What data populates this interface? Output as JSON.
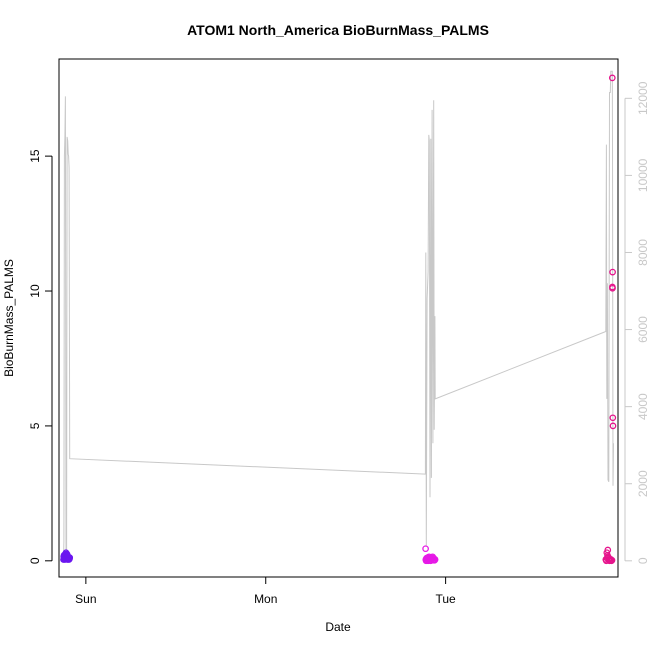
{
  "chart_data": {
    "type": "scatter",
    "title": "ATOM1 North_America BioBurnMass_PALMS",
    "xlabel": "Date",
    "ylabel": "BioBurnMass_PALMS",
    "x_axis": {
      "type": "date",
      "ticks": [
        {
          "label": "Sun",
          "value": "2016-08-07T00:00"
        },
        {
          "label": "Mon",
          "value": "2016-08-08T00:00"
        },
        {
          "label": "Tue",
          "value": "2016-08-09T00:00"
        }
      ],
      "range": [
        "2016-08-06T20:25",
        "2016-08-09T23:00"
      ]
    },
    "y_axis_left": {
      "ticks": [
        0,
        5,
        10,
        15
      ],
      "range": [
        -0.6,
        18.6
      ]
    },
    "y_axis_right": {
      "ticks": [
        0,
        2000,
        4000,
        6000,
        8000,
        10000,
        12000
      ],
      "range": [
        -420,
        13020
      ],
      "color": "#c8c8c8"
    },
    "line_series": {
      "color": "#c8c8c8",
      "axis": "right",
      "points": [
        [
          "2016-08-06T21:01",
          0
        ],
        [
          "2016-08-06T21:04",
          510
        ],
        [
          "2016-08-06T21:08",
          10500
        ],
        [
          "2016-08-06T21:12",
          11000
        ],
        [
          "2016-08-06T21:16",
          12050
        ],
        [
          "2016-08-06T21:21",
          200
        ],
        [
          "2016-08-06T21:26",
          200
        ],
        [
          "2016-08-06T21:30",
          11000
        ],
        [
          "2016-08-06T21:35",
          10900
        ],
        [
          "2016-08-06T21:39",
          10550
        ],
        [
          "2016-08-06T21:42",
          10500
        ],
        [
          "2016-08-06T21:46",
          10200
        ],
        [
          "2016-08-06T21:51",
          2650
        ],
        [
          "2016-08-08T21:18",
          2250
        ],
        [
          "2016-08-08T21:21",
          8000
        ],
        [
          "2016-08-08T21:25",
          400
        ],
        [
          "2016-08-08T21:32",
          6800
        ],
        [
          "2016-08-08T21:40",
          7500
        ],
        [
          "2016-08-08T21:45",
          11050
        ],
        [
          "2016-08-08T21:49",
          10900
        ],
        [
          "2016-08-08T21:55",
          1650
        ],
        [
          "2016-08-08T22:01",
          10950
        ],
        [
          "2016-08-08T22:06",
          2150
        ],
        [
          "2016-08-08T22:12",
          11700
        ],
        [
          "2016-08-08T22:18",
          3050
        ],
        [
          "2016-08-08T22:25",
          11950
        ],
        [
          "2016-08-08T22:29",
          3400
        ],
        [
          "2016-08-08T22:34",
          6350
        ],
        [
          "2016-08-08T22:37",
          4200
        ],
        [
          "2016-08-09T21:22",
          5950
        ],
        [
          "2016-08-09T21:27",
          10800
        ],
        [
          "2016-08-09T21:30",
          4200
        ],
        [
          "2016-08-09T21:35",
          7200
        ],
        [
          "2016-08-09T21:40",
          2100
        ],
        [
          "2016-08-09T21:46",
          2050
        ],
        [
          "2016-08-09T21:52",
          12150
        ],
        [
          "2016-08-09T21:58",
          12150
        ],
        [
          "2016-08-09T22:02",
          12700
        ],
        [
          "2016-08-09T22:14",
          12700
        ],
        [
          "2016-08-09T22:16",
          10800
        ],
        [
          "2016-08-09T22:20",
          1950
        ],
        [
          "2016-08-09T22:24",
          3050
        ]
      ]
    },
    "series": [
      {
        "color": "#6a16f0",
        "axis": "left",
        "points": [
          [
            "2016-08-06T21:01",
            0.05
          ],
          [
            "2016-08-06T21:03",
            0.15
          ],
          [
            "2016-08-06T21:05",
            0.2
          ],
          [
            "2016-08-06T21:07",
            0.08
          ],
          [
            "2016-08-06T21:09",
            0.22
          ],
          [
            "2016-08-06T21:11",
            0.12
          ],
          [
            "2016-08-06T21:13",
            0.05
          ],
          [
            "2016-08-06T21:15",
            0.18
          ],
          [
            "2016-08-06T21:17",
            0.1
          ],
          [
            "2016-08-06T21:19",
            0.25
          ],
          [
            "2016-08-06T21:21",
            0.3
          ],
          [
            "2016-08-06T21:23",
            0.15
          ],
          [
            "2016-08-06T21:25",
            0.08
          ],
          [
            "2016-08-06T21:27",
            0.2
          ],
          [
            "2016-08-06T21:29",
            0.25
          ],
          [
            "2016-08-06T21:31",
            0.12
          ],
          [
            "2016-08-06T21:33",
            0.05
          ],
          [
            "2016-08-06T21:35",
            0.18
          ],
          [
            "2016-08-06T21:37",
            0.1
          ],
          [
            "2016-08-06T21:39",
            0.15
          ],
          [
            "2016-08-06T21:41",
            0.08
          ],
          [
            "2016-08-06T21:43",
            0.12
          ],
          [
            "2016-08-06T21:45",
            0.05
          ],
          [
            "2016-08-06T21:47",
            0.1
          ],
          [
            "2016-08-06T21:49",
            0.08
          ],
          [
            "2016-08-06T21:51",
            0.12
          ]
        ]
      },
      {
        "color": "#e619e6",
        "axis": "left",
        "points": [
          [
            "2016-08-08T21:20",
            0.45
          ],
          [
            "2016-08-08T21:21",
            0.05
          ],
          [
            "2016-08-08T21:24",
            0.0
          ],
          [
            "2016-08-08T21:28",
            0.1
          ],
          [
            "2016-08-08T21:32",
            0.05
          ],
          [
            "2016-08-08T21:36",
            0.12
          ],
          [
            "2016-08-08T21:40",
            0.0
          ],
          [
            "2016-08-08T21:44",
            0.08
          ],
          [
            "2016-08-08T21:48",
            0.15
          ],
          [
            "2016-08-08T21:52",
            0.05
          ],
          [
            "2016-08-08T21:56",
            0.1
          ],
          [
            "2016-08-08T22:00",
            0.0
          ],
          [
            "2016-08-08T22:04",
            0.12
          ],
          [
            "2016-08-08T22:08",
            0.05
          ],
          [
            "2016-08-08T22:12",
            0.08
          ],
          [
            "2016-08-08T22:16",
            0.15
          ],
          [
            "2016-08-08T22:20",
            0.02
          ],
          [
            "2016-08-08T22:24",
            0.1
          ],
          [
            "2016-08-08T22:28",
            0.05
          ],
          [
            "2016-08-08T22:32",
            0.02
          ],
          [
            "2016-08-08T22:36",
            0.05
          ]
        ]
      },
      {
        "color": "#e6148c",
        "axis": "left",
        "points": [
          [
            "2016-08-09T21:22",
            0.05
          ],
          [
            "2016-08-09T21:26",
            0.0
          ],
          [
            "2016-08-09T21:30",
            0.3
          ],
          [
            "2016-08-09T21:33",
            0.1
          ],
          [
            "2016-08-09T21:36",
            0.2
          ],
          [
            "2016-08-09T21:38",
            0.4
          ],
          [
            "2016-08-09T21:40",
            0.15
          ],
          [
            "2016-08-09T21:44",
            0.05
          ],
          [
            "2016-08-09T21:48",
            0.1
          ],
          [
            "2016-08-09T21:52",
            0.0
          ],
          [
            "2016-08-09T21:56",
            0.05
          ],
          [
            "2016-08-09T22:00",
            0.02
          ],
          [
            "2016-08-09T22:04",
            0.05
          ],
          [
            "2016-08-09T22:08",
            0.0
          ],
          [
            "2016-08-09T22:12",
            0.02
          ],
          [
            "2016-08-09T22:14",
            17.9
          ],
          [
            "2016-08-09T22:15",
            10.15
          ],
          [
            "2016-08-09T22:17",
            10.7
          ],
          [
            "2016-08-09T22:18",
            5.3
          ],
          [
            "2016-08-09T22:20",
            5.0
          ],
          [
            "2016-08-09T22:16",
            10.1
          ]
        ]
      }
    ],
    "grid": false,
    "legend": "none"
  }
}
